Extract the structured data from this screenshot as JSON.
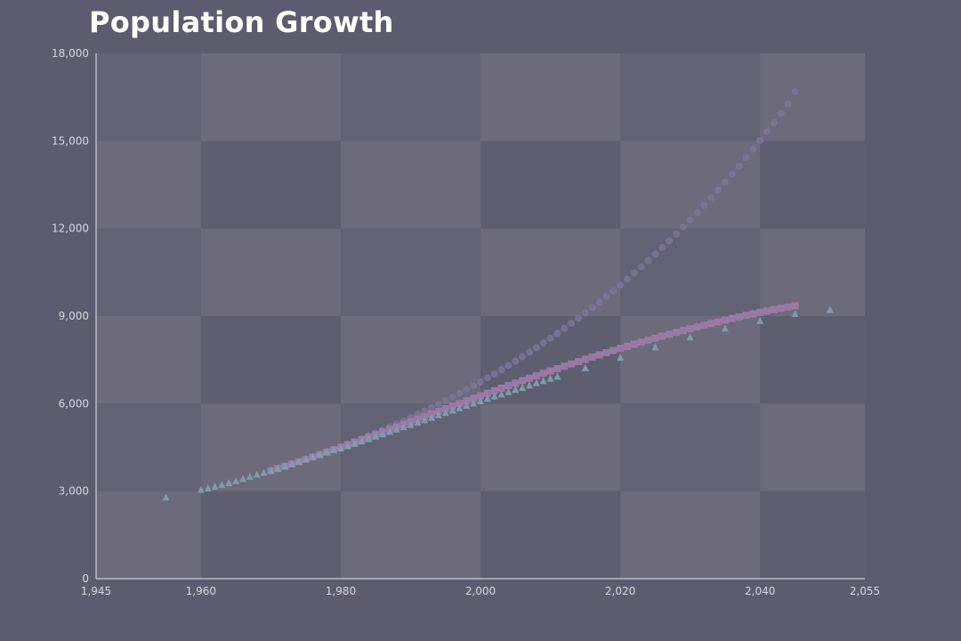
{
  "chart_data": {
    "type": "scatter",
    "title": "Population Growth",
    "xlabel": "",
    "ylabel": "",
    "xlim": [
      1945,
      2055
    ],
    "ylim": [
      0,
      18000
    ],
    "xticks": [
      1945,
      1960,
      1980,
      2000,
      2020,
      2040,
      2055
    ],
    "xtick_labels": [
      "1,945",
      "1,960",
      "1,980",
      "2,000",
      "2,020",
      "2,040",
      "2,055"
    ],
    "yticks": [
      0,
      3000,
      6000,
      9000,
      12000,
      15000,
      18000
    ],
    "ytick_labels": [
      "0",
      "3,000",
      "6,000",
      "9,000",
      "12,000",
      "15,000",
      "18,000"
    ],
    "grid": true,
    "legend": "none",
    "series": [
      {
        "marker": "circle",
        "color": "#7d7497",
        "points": [
          [
            1970,
            3700
          ],
          [
            1971,
            3775
          ],
          [
            1972,
            3851
          ],
          [
            1973,
            3929
          ],
          [
            1974,
            4008
          ],
          [
            1975,
            4089
          ],
          [
            1976,
            4172
          ],
          [
            1977,
            4256
          ],
          [
            1978,
            4342
          ],
          [
            1979,
            4430
          ],
          [
            1980,
            4520
          ],
          [
            1981,
            4611
          ],
          [
            1982,
            4704
          ],
          [
            1983,
            4800
          ],
          [
            1984,
            4897
          ],
          [
            1985,
            4996
          ],
          [
            1986,
            5097
          ],
          [
            1987,
            5200
          ],
          [
            1988,
            5305
          ],
          [
            1989,
            5412
          ],
          [
            1990,
            5522
          ],
          [
            1991,
            5633
          ],
          [
            1992,
            5747
          ],
          [
            1993,
            5863
          ],
          [
            1994,
            5982
          ],
          [
            1995,
            6103
          ],
          [
            1996,
            6226
          ],
          [
            1997,
            6352
          ],
          [
            1998,
            6480
          ],
          [
            1999,
            6611
          ],
          [
            2000,
            6745
          ],
          [
            2001,
            6881
          ],
          [
            2002,
            7020
          ],
          [
            2003,
            7162
          ],
          [
            2004,
            7307
          ],
          [
            2005,
            7455
          ],
          [
            2006,
            7605
          ],
          [
            2007,
            7759
          ],
          [
            2008,
            7916
          ],
          [
            2009,
            8076
          ],
          [
            2010,
            8239
          ],
          [
            2011,
            8406
          ],
          [
            2012,
            8576
          ],
          [
            2013,
            8749
          ],
          [
            2014,
            8926
          ],
          [
            2015,
            9106
          ],
          [
            2016,
            9290
          ],
          [
            2017,
            9478
          ],
          [
            2018,
            9669
          ],
          [
            2019,
            9865
          ],
          [
            2020,
            10064
          ],
          [
            2021,
            10268
          ],
          [
            2022,
            10475
          ],
          [
            2023,
            10687
          ],
          [
            2024,
            10903
          ],
          [
            2025,
            11123
          ],
          [
            2026,
            11348
          ],
          [
            2027,
            11577
          ],
          [
            2028,
            11811
          ],
          [
            2029,
            12050
          ],
          [
            2030,
            12293
          ],
          [
            2031,
            12542
          ],
          [
            2032,
            12795
          ],
          [
            2033,
            13054
          ],
          [
            2034,
            13318
          ],
          [
            2035,
            13587
          ],
          [
            2036,
            13861
          ],
          [
            2037,
            14141
          ],
          [
            2038,
            14427
          ],
          [
            2039,
            14719
          ],
          [
            2040,
            15016
          ],
          [
            2041,
            15320
          ],
          [
            2042,
            15629
          ],
          [
            2043,
            15945
          ],
          [
            2044,
            16267
          ],
          [
            2045,
            16700
          ]
        ]
      },
      {
        "marker": "square",
        "color": "#a07ca8",
        "points": [
          [
            1970,
            3700
          ],
          [
            1971,
            3776
          ],
          [
            1972,
            3853
          ],
          [
            1973,
            3931
          ],
          [
            1974,
            4010
          ],
          [
            1975,
            4090
          ],
          [
            1976,
            4171
          ],
          [
            1977,
            4253
          ],
          [
            1978,
            4336
          ],
          [
            1979,
            4420
          ],
          [
            1980,
            4505
          ],
          [
            1981,
            4590
          ],
          [
            1982,
            4676
          ],
          [
            1983,
            4762
          ],
          [
            1984,
            4849
          ],
          [
            1985,
            4937
          ],
          [
            1986,
            5025
          ],
          [
            1987,
            5113
          ],
          [
            1988,
            5202
          ],
          [
            1989,
            5291
          ],
          [
            1990,
            5380
          ],
          [
            1991,
            5469
          ],
          [
            1992,
            5558
          ],
          [
            1993,
            5647
          ],
          [
            1994,
            5736
          ],
          [
            1995,
            5825
          ],
          [
            1996,
            5914
          ],
          [
            1997,
            6003
          ],
          [
            1998,
            6092
          ],
          [
            1999,
            6180
          ],
          [
            2000,
            6268
          ],
          [
            2001,
            6355
          ],
          [
            2002,
            6442
          ],
          [
            2003,
            6529
          ],
          [
            2004,
            6615
          ],
          [
            2005,
            6700
          ],
          [
            2006,
            6785
          ],
          [
            2007,
            6869
          ],
          [
            2008,
            6953
          ],
          [
            2009,
            7036
          ],
          [
            2010,
            7118
          ],
          [
            2011,
            7199
          ],
          [
            2012,
            7280
          ],
          [
            2013,
            7360
          ],
          [
            2014,
            7439
          ],
          [
            2015,
            7517
          ],
          [
            2016,
            7594
          ],
          [
            2017,
            7670
          ],
          [
            2018,
            7745
          ],
          [
            2019,
            7819
          ],
          [
            2020,
            7892
          ],
          [
            2021,
            7964
          ],
          [
            2022,
            8035
          ],
          [
            2023,
            8105
          ],
          [
            2024,
            8174
          ],
          [
            2025,
            8242
          ],
          [
            2026,
            8309
          ],
          [
            2027,
            8375
          ],
          [
            2028,
            8440
          ],
          [
            2029,
            8504
          ],
          [
            2030,
            8567
          ],
          [
            2031,
            8628
          ],
          [
            2032,
            8688
          ],
          [
            2033,
            8747
          ],
          [
            2034,
            8805
          ],
          [
            2035,
            8862
          ],
          [
            2036,
            8917
          ],
          [
            2037,
            8971
          ],
          [
            2038,
            9024
          ],
          [
            2039,
            9076
          ],
          [
            2040,
            9126
          ],
          [
            2041,
            9175
          ],
          [
            2042,
            9222
          ],
          [
            2043,
            9267
          ],
          [
            2044,
            9310
          ],
          [
            2045,
            9350
          ]
        ]
      },
      {
        "marker": "triangle",
        "color": "#7e9fae",
        "points": [
          [
            1955,
            2770
          ],
          [
            1960,
            3030
          ],
          [
            1961,
            3080
          ],
          [
            1962,
            3140
          ],
          [
            1963,
            3200
          ],
          [
            1964,
            3260
          ],
          [
            1965,
            3330
          ],
          [
            1966,
            3400
          ],
          [
            1967,
            3480
          ],
          [
            1968,
            3550
          ],
          [
            1969,
            3620
          ],
          [
            1970,
            3690
          ],
          [
            1971,
            3760
          ],
          [
            1972,
            3840
          ],
          [
            1973,
            3920
          ],
          [
            1974,
            4000
          ],
          [
            1975,
            4080
          ],
          [
            1976,
            4160
          ],
          [
            1977,
            4240
          ],
          [
            1978,
            4330
          ],
          [
            1979,
            4410
          ],
          [
            1980,
            4450
          ],
          [
            1981,
            4530
          ],
          [
            1982,
            4610
          ],
          [
            1983,
            4690
          ],
          [
            1984,
            4770
          ],
          [
            1985,
            4860
          ],
          [
            1986,
            4940
          ],
          [
            1987,
            5020
          ],
          [
            1988,
            5100
          ],
          [
            1989,
            5180
          ],
          [
            1990,
            5260
          ],
          [
            1991,
            5340
          ],
          [
            1992,
            5420
          ],
          [
            1993,
            5500
          ],
          [
            1994,
            5590
          ],
          [
            1995,
            5670
          ],
          [
            1996,
            5750
          ],
          [
            1997,
            5830
          ],
          [
            1998,
            5910
          ],
          [
            1999,
            5990
          ],
          [
            2000,
            6070
          ],
          [
            2001,
            6150
          ],
          [
            2002,
            6230
          ],
          [
            2003,
            6300
          ],
          [
            2004,
            6380
          ],
          [
            2005,
            6460
          ],
          [
            2006,
            6530
          ],
          [
            2007,
            6610
          ],
          [
            2008,
            6690
          ],
          [
            2009,
            6760
          ],
          [
            2010,
            6840
          ],
          [
            2011,
            6910
          ],
          [
            2015,
            7200
          ],
          [
            2020,
            7560
          ],
          [
            2025,
            7920
          ],
          [
            2030,
            8260
          ],
          [
            2035,
            8560
          ],
          [
            2040,
            8820
          ],
          [
            2045,
            9060
          ],
          [
            2050,
            9200
          ]
        ]
      }
    ]
  }
}
